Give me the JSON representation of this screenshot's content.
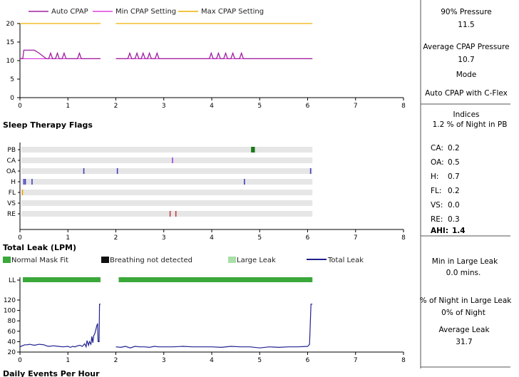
{
  "pressure": {
    "legend": [
      {
        "label": "Auto CPAP",
        "color": "#a020a0"
      },
      {
        "label": "Min CPAP Setting",
        "color": "#e040e0"
      },
      {
        "label": "Max CPAP Setting",
        "color": "#f0b000"
      }
    ],
    "chart_data": {
      "type": "line",
      "xlim": [
        0,
        8
      ],
      "ylim": [
        0,
        20
      ],
      "xticks": [
        "0",
        "1",
        "2",
        "3",
        "4",
        "5",
        "6",
        "7",
        "8"
      ],
      "yticks": [
        "0",
        "5",
        "10",
        "15",
        "20"
      ],
      "series": [
        {
          "name": "Max CPAP Setting",
          "segments": [
            [
              [
                0,
                20
              ],
              [
                1.68,
                20
              ]
            ],
            [
              [
                2.0,
                20
              ],
              [
                6.1,
                20
              ]
            ]
          ]
        },
        {
          "name": "Min CPAP Setting",
          "segments": [
            [
              [
                0,
                10.5
              ],
              [
                1.68,
                10.5
              ]
            ],
            [
              [
                2.0,
                10.5
              ],
              [
                6.1,
                10.5
              ]
            ]
          ]
        },
        {
          "name": "Auto CPAP",
          "segments": [
            [
              [
                0,
                10.5
              ],
              [
                0.06,
                10.6
              ],
              [
                0.08,
                12.8
              ],
              [
                0.3,
                12.8
              ],
              [
                0.4,
                12.0
              ],
              [
                0.55,
                10.5
              ],
              [
                0.6,
                10.5
              ],
              [
                0.64,
                12.0
              ],
              [
                0.68,
                10.5
              ],
              [
                0.74,
                10.5
              ],
              [
                0.78,
                12.0
              ],
              [
                0.82,
                10.5
              ],
              [
                0.88,
                10.5
              ],
              [
                0.92,
                12.0
              ],
              [
                0.96,
                10.5
              ],
              [
                1.2,
                10.5
              ],
              [
                1.24,
                12.0
              ],
              [
                1.28,
                10.5
              ],
              [
                1.68,
                10.5
              ]
            ],
            [
              [
                2.0,
                10.5
              ],
              [
                2.25,
                10.5
              ],
              [
                2.29,
                12.0
              ],
              [
                2.33,
                10.5
              ],
              [
                2.4,
                10.5
              ],
              [
                2.44,
                12.0
              ],
              [
                2.48,
                10.5
              ],
              [
                2.53,
                10.5
              ],
              [
                2.57,
                12.0
              ],
              [
                2.61,
                10.5
              ],
              [
                2.66,
                10.5
              ],
              [
                2.7,
                12.0
              ],
              [
                2.74,
                10.5
              ],
              [
                2.82,
                10.5
              ],
              [
                2.86,
                12.0
              ],
              [
                2.9,
                10.5
              ],
              [
                3.95,
                10.5
              ],
              [
                3.99,
                12.0
              ],
              [
                4.03,
                10.5
              ],
              [
                4.1,
                10.5
              ],
              [
                4.14,
                12.0
              ],
              [
                4.18,
                10.5
              ],
              [
                4.25,
                10.5
              ],
              [
                4.29,
                12.0
              ],
              [
                4.33,
                10.5
              ],
              [
                4.4,
                10.5
              ],
              [
                4.44,
                12.0
              ],
              [
                4.48,
                10.5
              ],
              [
                4.58,
                10.5
              ],
              [
                4.62,
                12.0
              ],
              [
                4.66,
                10.5
              ],
              [
                6.1,
                10.5
              ]
            ]
          ]
        }
      ]
    }
  },
  "flags": {
    "title": "Sleep Therapy Flags",
    "chart_data": {
      "type": "scatter",
      "xlim": [
        0,
        8
      ],
      "xticks": [
        "0",
        "1",
        "2",
        "3",
        "4",
        "5",
        "6",
        "7",
        "8"
      ],
      "rows": [
        "PB",
        "CA",
        "OA",
        "H",
        "FL",
        "VS",
        "RE"
      ],
      "events": [
        {
          "row": "PB",
          "x": 4.82,
          "w": 0.08,
          "color": "#1a7a1a"
        },
        {
          "row": "CA",
          "x": 3.17,
          "color": "#9a40e0"
        },
        {
          "row": "OA",
          "x": 1.32,
          "color": "#4040c0"
        },
        {
          "row": "OA",
          "x": 2.02,
          "color": "#4040c0"
        },
        {
          "row": "OA",
          "x": 6.05,
          "color": "#4040c0"
        },
        {
          "row": "H",
          "x": 0.07,
          "color": "#4040c0"
        },
        {
          "row": "H",
          "x": 0.1,
          "color": "#4040c0"
        },
        {
          "row": "H",
          "x": 0.24,
          "color": "#4040c0"
        },
        {
          "row": "H",
          "x": 4.67,
          "color": "#4040c0"
        },
        {
          "row": "FL",
          "x": 0.04,
          "color": "#f0a000"
        },
        {
          "row": "RE",
          "x": 3.12,
          "color": "#c04040"
        },
        {
          "row": "RE",
          "x": 3.24,
          "color": "#c04040"
        }
      ]
    }
  },
  "leak": {
    "title": "Total Leak (LPM)",
    "legend": [
      {
        "label": "Normal Mask Fit",
        "color": "#3aa83a",
        "kind": "box"
      },
      {
        "label": "Breathing not detected",
        "color": "#111111",
        "kind": "box"
      },
      {
        "label": "Large Leak",
        "color": "#a8e0a8",
        "kind": "box"
      },
      {
        "label": "Total Leak",
        "color": "#202090",
        "kind": "line"
      }
    ],
    "chart_data": {
      "type": "line",
      "xlim": [
        0,
        8
      ],
      "ylim": [
        20,
        120
      ],
      "xticks": [
        "0",
        "1",
        "2",
        "3",
        "4",
        "5",
        "6",
        "7",
        "8"
      ],
      "yticks": [
        "20",
        "40",
        "60",
        "80",
        "100",
        "120"
      ],
      "ll_label": "LL",
      "ll_bands": [
        [
          0,
          1.68
        ],
        [
          2.0,
          6.1
        ]
      ],
      "series": [
        {
          "name": "Total Leak",
          "segments": [
            [
              [
                0,
                30
              ],
              [
                0.05,
                32
              ],
              [
                0.1,
                34
              ],
              [
                0.15,
                34
              ],
              [
                0.2,
                35
              ],
              [
                0.3,
                33
              ],
              [
                0.4,
                35
              ],
              [
                0.5,
                34
              ],
              [
                0.55,
                32
              ],
              [
                0.6,
                31
              ],
              [
                0.7,
                32
              ],
              [
                0.8,
                31
              ],
              [
                0.9,
                30
              ],
              [
                1.0,
                31
              ],
              [
                1.05,
                29
              ],
              [
                1.1,
                31
              ],
              [
                1.15,
                30
              ],
              [
                1.2,
                32
              ],
              [
                1.25,
                33
              ],
              [
                1.3,
                31
              ],
              [
                1.35,
                36
              ],
              [
                1.38,
                30
              ],
              [
                1.4,
                42
              ],
              [
                1.43,
                33
              ],
              [
                1.45,
                40
              ],
              [
                1.48,
                35
              ],
              [
                1.5,
                50
              ],
              [
                1.52,
                38
              ],
              [
                1.54,
                52
              ],
              [
                1.56,
                55
              ],
              [
                1.58,
                62
              ],
              [
                1.6,
                70
              ],
              [
                1.62,
                75
              ],
              [
                1.63,
                40
              ],
              [
                1.65,
                40
              ],
              [
                1.66,
                112
              ],
              [
                1.68,
                112
              ]
            ],
            [
              [
                2.0,
                30
              ],
              [
                2.1,
                29
              ],
              [
                2.2,
                31
              ],
              [
                2.3,
                28
              ],
              [
                2.4,
                31
              ],
              [
                2.5,
                30
              ],
              [
                2.6,
                30
              ],
              [
                2.7,
                29
              ],
              [
                2.8,
                31
              ],
              [
                2.9,
                30
              ],
              [
                3.0,
                30
              ],
              [
                3.2,
                30
              ],
              [
                3.4,
                31
              ],
              [
                3.6,
                30
              ],
              [
                3.8,
                30
              ],
              [
                4.0,
                30
              ],
              [
                4.2,
                29
              ],
              [
                4.4,
                31
              ],
              [
                4.6,
                30
              ],
              [
                4.8,
                30
              ],
              [
                5.0,
                28
              ],
              [
                5.2,
                30
              ],
              [
                5.4,
                29
              ],
              [
                5.6,
                30
              ],
              [
                5.8,
                30
              ],
              [
                6.0,
                31
              ],
              [
                6.04,
                35
              ],
              [
                6.07,
                112
              ],
              [
                6.1,
                112
              ]
            ]
          ]
        }
      ]
    }
  },
  "bottom_title": "Daily Events Per Hour",
  "side1": {
    "p90_label": "90% Pressure",
    "p90_value": "11.5",
    "avg_label": "Average CPAP Pressure",
    "avg_value": "10.7",
    "mode_label": "Mode",
    "mode_value": "Auto CPAP with C-Flex"
  },
  "side2": {
    "header": "Indices",
    "pb_text": "1.2 % of Night in PB",
    "indices": [
      {
        "label": "CA:",
        "value": "0.2"
      },
      {
        "label": "OA:",
        "value": "0.5"
      },
      {
        "label": "H:",
        "value": "0.7"
      },
      {
        "label": "FL:",
        "value": "0.2"
      },
      {
        "label": "VS:",
        "value": "0.0"
      },
      {
        "label": "RE:",
        "value": "0.3"
      }
    ],
    "ahi_label": "AHI:",
    "ahi_value": "1.4"
  },
  "side3": {
    "large_leak_label": "Min in Large Leak",
    "large_leak_value": "0.0  mins.",
    "pct_label": "% of Night in Large Leak",
    "pct_value": "0% of Night",
    "avg_leak_label": "Average Leak",
    "avg_leak_value": "31.7"
  }
}
